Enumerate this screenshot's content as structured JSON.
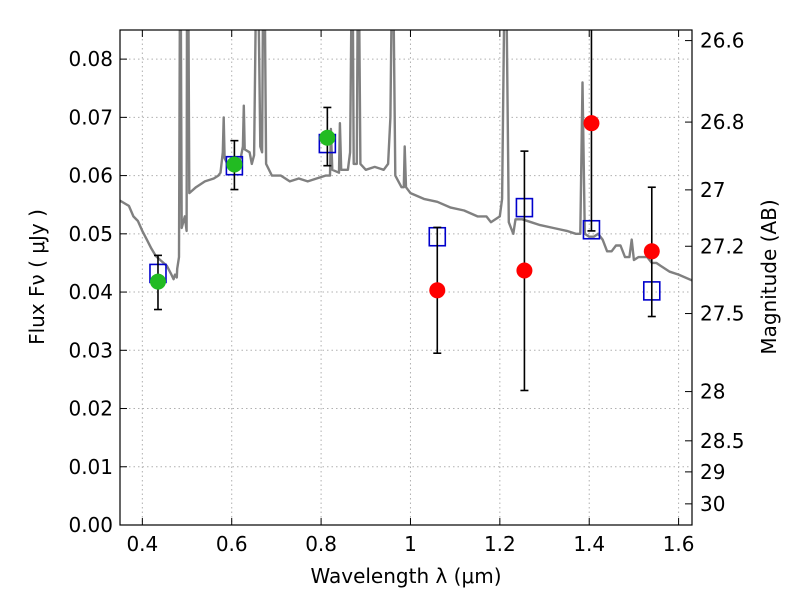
{
  "chart_data": {
    "type": "scatter",
    "xlabel": "Wavelength  λ (μm)",
    "ylabel": "Flux  Fν  ( μJy )",
    "y2label": "Magnitude (AB)",
    "xlim": [
      0.35,
      1.63
    ],
    "ylim": [
      0.0,
      0.085
    ],
    "grid": true,
    "x_ticks": [
      0.4,
      0.6,
      0.8,
      1.0,
      1.2,
      1.4,
      1.6
    ],
    "x_tick_labels": [
      "0.4",
      "0.6",
      "0.8",
      "1",
      "1.2",
      "1.4",
      "1.6"
    ],
    "y_ticks": [
      0.0,
      0.01,
      0.02,
      0.03,
      0.04,
      0.05,
      0.06,
      0.07,
      0.08
    ],
    "y_tick_labels": [
      "0.00",
      "0.01",
      "0.02",
      "0.03",
      "0.04",
      "0.05",
      "0.06",
      "0.07",
      "0.08"
    ],
    "y2_ticks": [
      {
        "label": "26.6",
        "mag": 26.6
      },
      {
        "label": "26.8",
        "mag": 26.8
      },
      {
        "label": "27",
        "mag": 27.0
      },
      {
        "label": "27.2",
        "mag": 27.2
      },
      {
        "label": "27.5",
        "mag": 27.5
      },
      {
        "label": "28",
        "mag": 28.0
      },
      {
        "label": "28.5",
        "mag": 28.5
      },
      {
        "label": "29",
        "mag": 29.0
      },
      {
        "label": "30",
        "mag": 30.0
      }
    ],
    "colors": {
      "model": "#808080",
      "model_points": "#0000cc",
      "detections": "#22bb22",
      "lowsn": "#ff0000",
      "errorbars": "#000000",
      "grid": "#b0b0b0"
    },
    "series": [
      {
        "kind": "line",
        "points": [
          [
            0.35,
            0.0557
          ],
          [
            0.37,
            0.0548
          ],
          [
            0.38,
            0.053
          ],
          [
            0.39,
            0.0522
          ],
          [
            0.4,
            0.0505
          ],
          [
            0.41,
            0.049
          ],
          [
            0.42,
            0.0475
          ],
          [
            0.43,
            0.0462
          ],
          [
            0.44,
            0.0455
          ],
          [
            0.455,
            0.0445
          ],
          [
            0.465,
            0.043
          ],
          [
            0.47,
            0.0422
          ],
          [
            0.473,
            0.043
          ],
          [
            0.477,
            0.0425
          ],
          [
            0.478,
            0.044
          ],
          [
            0.482,
            0.046
          ],
          [
            0.484,
            0.09
          ],
          [
            0.486,
            0.09
          ],
          [
            0.488,
            0.051
          ],
          [
            0.495,
            0.053
          ],
          [
            0.499,
            0.0505
          ],
          [
            0.5,
            0.09
          ],
          [
            0.503,
            0.09
          ],
          [
            0.505,
            0.057
          ],
          [
            0.52,
            0.058
          ],
          [
            0.54,
            0.059
          ],
          [
            0.56,
            0.0595
          ],
          [
            0.57,
            0.06
          ],
          [
            0.575,
            0.0605
          ],
          [
            0.58,
            0.064
          ],
          [
            0.582,
            0.07
          ],
          [
            0.584,
            0.063
          ],
          [
            0.59,
            0.062
          ],
          [
            0.6,
            0.0625
          ],
          [
            0.615,
            0.0625
          ],
          [
            0.62,
            0.063
          ],
          [
            0.625,
            0.065
          ],
          [
            0.627,
            0.072
          ],
          [
            0.629,
            0.0645
          ],
          [
            0.64,
            0.064
          ],
          [
            0.645,
            0.062
          ],
          [
            0.65,
            0.0635
          ],
          [
            0.654,
            0.09
          ],
          [
            0.658,
            0.09
          ],
          [
            0.66,
            0.09
          ],
          [
            0.664,
            0.065
          ],
          [
            0.668,
            0.064
          ],
          [
            0.67,
            0.09
          ],
          [
            0.674,
            0.09
          ],
          [
            0.677,
            0.062
          ],
          [
            0.69,
            0.06
          ],
          [
            0.71,
            0.06
          ],
          [
            0.73,
            0.059
          ],
          [
            0.75,
            0.0595
          ],
          [
            0.77,
            0.059
          ],
          [
            0.79,
            0.0595
          ],
          [
            0.81,
            0.06
          ],
          [
            0.82,
            0.06
          ],
          [
            0.822,
            0.068
          ],
          [
            0.825,
            0.061
          ],
          [
            0.84,
            0.0605
          ],
          [
            0.842,
            0.069
          ],
          [
            0.845,
            0.061
          ],
          [
            0.86,
            0.061
          ],
          [
            0.865,
            0.064
          ],
          [
            0.868,
            0.09
          ],
          [
            0.871,
            0.09
          ],
          [
            0.873,
            0.062
          ],
          [
            0.88,
            0.062
          ],
          [
            0.882,
            0.09
          ],
          [
            0.885,
            0.09
          ],
          [
            0.888,
            0.062
          ],
          [
            0.9,
            0.061
          ],
          [
            0.92,
            0.0615
          ],
          [
            0.94,
            0.061
          ],
          [
            0.95,
            0.062
          ],
          [
            0.955,
            0.07
          ],
          [
            0.958,
            0.09
          ],
          [
            0.962,
            0.09
          ],
          [
            0.966,
            0.06
          ],
          [
            0.98,
            0.058
          ],
          [
            0.985,
            0.058
          ],
          [
            0.987,
            0.065
          ],
          [
            0.99,
            0.058
          ],
          [
            1.0,
            0.057
          ],
          [
            1.03,
            0.056
          ],
          [
            1.06,
            0.0555
          ],
          [
            1.09,
            0.0545
          ],
          [
            1.12,
            0.054
          ],
          [
            1.15,
            0.053
          ],
          [
            1.17,
            0.053
          ],
          [
            1.18,
            0.052
          ],
          [
            1.2,
            0.053
          ],
          [
            1.205,
            0.056
          ],
          [
            1.21,
            0.09
          ],
          [
            1.215,
            0.09
          ],
          [
            1.22,
            0.052
          ],
          [
            1.225,
            0.051
          ],
          [
            1.23,
            0.05
          ],
          [
            1.235,
            0.0525
          ],
          [
            1.25,
            0.0525
          ],
          [
            1.27,
            0.052
          ],
          [
            1.29,
            0.0515
          ],
          [
            1.32,
            0.051
          ],
          [
            1.35,
            0.0505
          ],
          [
            1.37,
            0.05
          ],
          [
            1.38,
            0.05
          ],
          [
            1.385,
            0.076
          ],
          [
            1.39,
            0.05
          ],
          [
            1.4,
            0.0495
          ],
          [
            1.41,
            0.0495
          ],
          [
            1.42,
            0.05
          ],
          [
            1.43,
            0.049
          ],
          [
            1.44,
            0.047
          ],
          [
            1.45,
            0.047
          ],
          [
            1.46,
            0.048
          ],
          [
            1.47,
            0.048
          ],
          [
            1.48,
            0.046
          ],
          [
            1.49,
            0.046
          ],
          [
            1.495,
            0.049
          ],
          [
            1.5,
            0.0455
          ],
          [
            1.51,
            0.046
          ],
          [
            1.52,
            0.046
          ],
          [
            1.53,
            0.046
          ],
          [
            1.54,
            0.045
          ],
          [
            1.55,
            0.045
          ],
          [
            1.56,
            0.0445
          ],
          [
            1.58,
            0.0435
          ],
          [
            1.6,
            0.043
          ],
          [
            1.63,
            0.042
          ]
        ]
      },
      {
        "kind": "model_points",
        "x": [
          0.435,
          0.606,
          0.814,
          1.06,
          1.255,
          1.405,
          1.54
        ],
        "y": [
          0.0432,
          0.0617,
          0.0655,
          0.0495,
          0.0545,
          0.0507,
          0.0402
        ]
      },
      {
        "kind": "detections",
        "x": [
          0.435,
          0.606,
          0.814
        ],
        "y": [
          0.0418,
          0.0619,
          0.0665
        ],
        "err_low": [
          0.0048,
          0.0043,
          0.0048
        ],
        "err_high": [
          0.0045,
          0.0041,
          0.0052
        ]
      },
      {
        "kind": "lowsn",
        "x": [
          1.06,
          1.255,
          1.405,
          1.54
        ],
        "y": [
          0.0403,
          0.0437,
          0.069,
          0.047
        ],
        "err_low": [
          0.0108,
          0.0206,
          0.0185,
          0.0112
        ],
        "err_high": [
          0.0108,
          0.0205,
          0.02,
          0.011
        ]
      }
    ]
  }
}
